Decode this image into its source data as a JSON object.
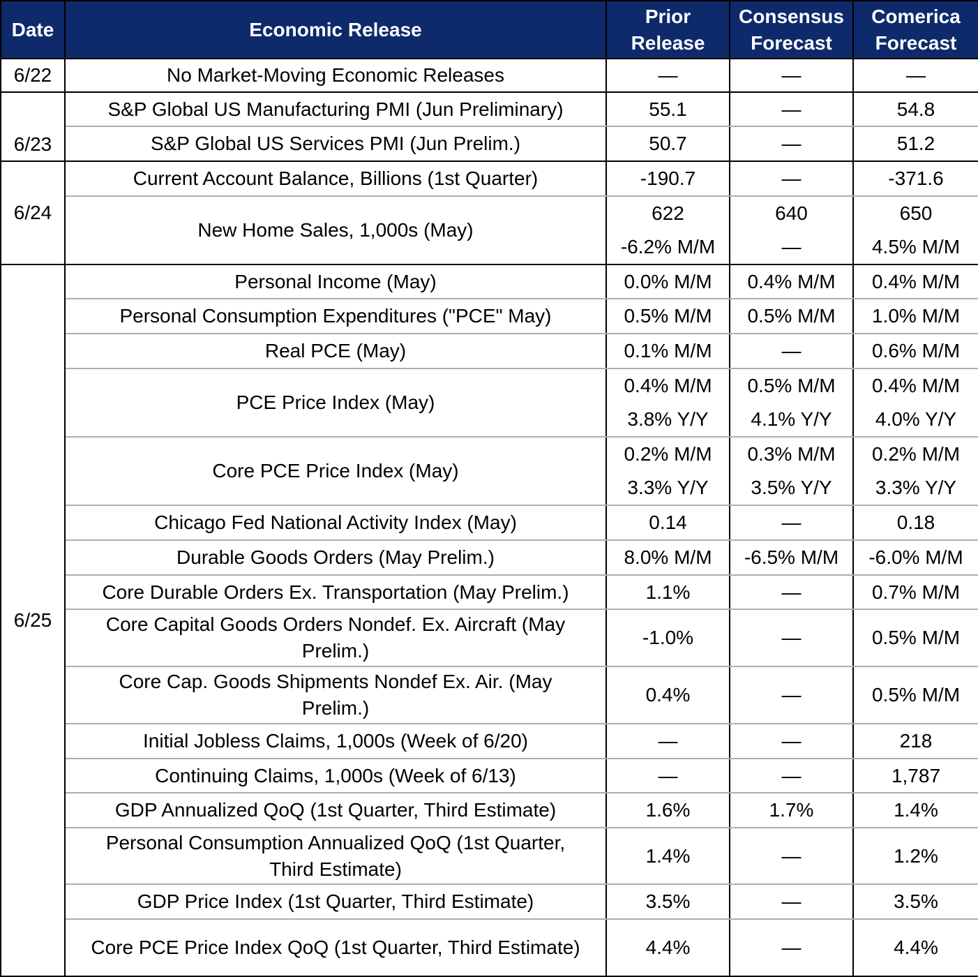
{
  "header": {
    "date": "Date",
    "release": "Economic Release",
    "prior": [
      "Prior",
      "Release"
    ],
    "consensus": [
      "Consensus",
      "Forecast"
    ],
    "comerica": [
      "Comerica",
      "Forecast"
    ]
  },
  "dash": "—",
  "rows": {
    "r622": {
      "date": "6/22",
      "release": "No Market-Moving Economic Releases",
      "prior": "—",
      "consensus": "—",
      "comerica": "—"
    },
    "r623a": {
      "date": "6/23",
      "release": "S&P Global US Manufacturing PMI (Jun Preliminary)",
      "prior": "55.1",
      "consensus": "—",
      "comerica": "54.8"
    },
    "r623b": {
      "release": "S&P Global US Services PMI (Jun Prelim.)",
      "prior": "50.7",
      "consensus": "—",
      "comerica": "51.2"
    },
    "r624a": {
      "date": "6/24",
      "release": "Current Account Balance, Billions (1st Quarter)",
      "prior": "-190.7",
      "consensus": "—",
      "comerica": "-371.6"
    },
    "r624b": {
      "release": "New Home Sales, 1,000s (May)",
      "prior": [
        "622",
        "-6.2% M/M"
      ],
      "consensus": [
        "640",
        "—"
      ],
      "comerica": [
        "650",
        "4.5% M/M"
      ]
    },
    "r625a": {
      "date": "6/25",
      "release": "Personal Income (May)",
      "prior": "0.0% M/M",
      "consensus": "0.4% M/M",
      "comerica": "0.4% M/M"
    },
    "r625b": {
      "release": "Personal Consumption Expenditures (\"PCE\" May)",
      "prior": "0.5% M/M",
      "consensus": "0.5% M/M",
      "comerica": "1.0% M/M"
    },
    "r625c": {
      "release": "Real PCE (May)",
      "prior": "0.1% M/M",
      "consensus": "—",
      "comerica": "0.6% M/M"
    },
    "r625d": {
      "release": "PCE Price Index (May)",
      "prior": [
        "0.4% M/M",
        "3.8% Y/Y"
      ],
      "consensus": [
        "0.5% M/M",
        "4.1% Y/Y"
      ],
      "comerica": [
        "0.4% M/M",
        "4.0% Y/Y"
      ]
    },
    "r625e": {
      "release": "Core PCE Price Index (May)",
      "prior": [
        "0.2% M/M",
        "3.3% Y/Y"
      ],
      "consensus": [
        "0.3% M/M",
        "3.5% Y/Y"
      ],
      "comerica": [
        "0.2% M/M",
        "3.3% Y/Y"
      ]
    },
    "r625f": {
      "release": "Chicago Fed National Activity Index (May)",
      "prior": "0.14",
      "consensus": "—",
      "comerica": "0.18"
    },
    "r625g": {
      "release": "Durable Goods Orders (May Prelim.)",
      "prior": "8.0% M/M",
      "consensus": "-6.5% M/M",
      "comerica": "-6.0% M/M"
    },
    "r625h": {
      "release": "Core Durable Orders Ex. Transportation (May Prelim.)",
      "prior": "1.1%",
      "consensus": "—",
      "comerica": "0.7% M/M"
    },
    "r625i": {
      "release": [
        "Core Capital Goods Orders Nondef. Ex. Aircraft (May",
        "Prelim.)"
      ],
      "prior": "-1.0%",
      "consensus": "—",
      "comerica": "0.5% M/M"
    },
    "r625j": {
      "release": [
        "Core Cap. Goods Shipments Nondef Ex. Air. (May",
        "Prelim.)"
      ],
      "prior": "0.4%",
      "consensus": "—",
      "comerica": "0.5% M/M"
    },
    "r625k": {
      "release": "Initial Jobless Claims, 1,000s (Week of 6/20)",
      "prior": "—",
      "consensus": "—",
      "comerica": "218"
    },
    "r625l": {
      "release": "Continuing Claims, 1,000s (Week of 6/13)",
      "prior": "—",
      "consensus": "—",
      "comerica": "1,787"
    },
    "r625m": {
      "release": "GDP Annualized QoQ (1st Quarter, Third Estimate)",
      "prior": "1.6%",
      "consensus": "1.7%",
      "comerica": "1.4%"
    },
    "r625n": {
      "release": [
        "Personal Consumption Annualized QoQ (1st Quarter,",
        "Third Estimate)"
      ],
      "prior": "1.4%",
      "consensus": "—",
      "comerica": "1.2%"
    },
    "r625o": {
      "release": "GDP Price Index (1st Quarter, Third Estimate)",
      "prior": "3.5%",
      "consensus": "—",
      "comerica": "3.5%"
    },
    "r625p": {
      "release": "Core PCE Price Index QoQ (1st Quarter, Third Estimate)",
      "prior": "4.4%",
      "consensus": "—",
      "comerica": "4.4%"
    }
  },
  "colors": {
    "header_bg": "#0e2a6b",
    "header_text": "#ffffff",
    "row_separator": "#aeaeae",
    "group_border": "#000000"
  }
}
